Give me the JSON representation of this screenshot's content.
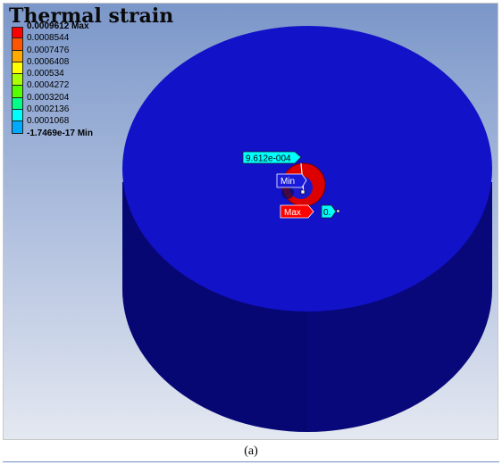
{
  "plot": {
    "title": "Thermal strain"
  },
  "legend": {
    "entries": [
      {
        "label": "0.0009612 Max",
        "color": "#ff0000",
        "strong": true
      },
      {
        "label": "0.0008544",
        "color": "#ff5500",
        "strong": false
      },
      {
        "label": "0.0007476",
        "color": "#ffaa00",
        "strong": false
      },
      {
        "label": "0.0006408",
        "color": "#ffff00",
        "strong": false
      },
      {
        "label": "0.000534",
        "color": "#aaff00",
        "strong": false
      },
      {
        "label": "0.0004272",
        "color": "#55ff00",
        "strong": false
      },
      {
        "label": "0.0003204",
        "color": "#00ff88",
        "strong": false
      },
      {
        "label": "0.0002136",
        "color": "#00ffff",
        "strong": false
      },
      {
        "label": "0.0001068",
        "color": "#00aaff",
        "strong": false
      }
    ],
    "min_label": "-1.7469e-17 Min"
  },
  "probes": {
    "value_label": "9.612e-004",
    "min_label": "Min",
    "max_label": "Max",
    "small_label": "0."
  },
  "colors": {
    "model_top": "#1212c8",
    "model_side": "#08087a",
    "hot_spot": "#dd0000",
    "probe_cyan": "#00ffff",
    "probe_red": "#ff0000",
    "probe_blue": "#1a1adc"
  },
  "caption": "(a)"
}
